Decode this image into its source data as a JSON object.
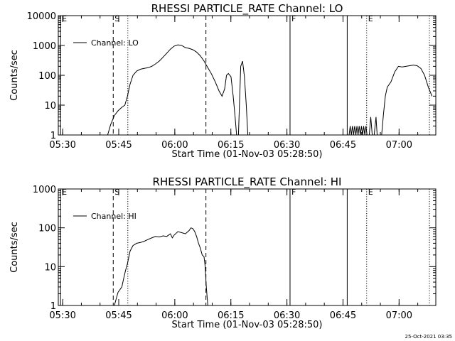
{
  "footer": {
    "timestamp": "25-Oct-2021 03:35"
  },
  "chart_data": [
    {
      "type": "line",
      "title": "RHESSI PARTICLE_RATE Channel: LO",
      "xlabel": "Start Time (01-Nov-03 05:28:50)",
      "ylabel": "Counts/sec",
      "x_units": "minutes after 05:28:50",
      "xlim": [
        0,
        101
      ],
      "ylim": [
        1,
        10000
      ],
      "yscale": "log",
      "x_tick_labels": [
        "05:30",
        "05:45",
        "06:00",
        "06:15",
        "06:30",
        "06:45",
        "07:00"
      ],
      "x_tick_values": [
        1.17,
        16.17,
        31.17,
        46.17,
        61.17,
        76.17,
        91.17
      ],
      "y_tick_labels": [
        "1",
        "10",
        "100",
        "1000",
        "10000"
      ],
      "y_tick_values": [
        1,
        10,
        100,
        1000,
        10000
      ],
      "legend": {
        "entry": "Channel: LO",
        "placement": "top-left"
      },
      "markers": [
        {
          "label": "E",
          "x": 0.6,
          "style": "solid"
        },
        {
          "label": "S",
          "x": 14.7,
          "style": "dashed"
        },
        {
          "label": "",
          "x": 18.6,
          "style": "dotted"
        },
        {
          "label": "",
          "x": 39.5,
          "style": "dashed"
        },
        {
          "label": "F",
          "x": 62.0,
          "style": "solid"
        },
        {
          "label": "",
          "x": 77.3,
          "style": "solid"
        },
        {
          "label": "E",
          "x": 82.5,
          "style": "dotted"
        },
        {
          "label": "",
          "x": 99.3,
          "style": "dotted"
        }
      ],
      "series": [
        {
          "name": "Channel: LO",
          "segments": [
            [
              [
                13.2,
                1
              ],
              [
                14.0,
                2.2
              ],
              [
                15.0,
                4.5
              ],
              [
                16.0,
                6.5
              ],
              [
                17.0,
                8.5
              ],
              [
                17.8,
                10
              ],
              [
                18.5,
                20
              ],
              [
                19.2,
                50
              ],
              [
                20.0,
                100
              ],
              [
                21.0,
                140
              ],
              [
                22.0,
                160
              ],
              [
                23.0,
                170
              ],
              [
                24.0,
                180
              ],
              [
                25.0,
                200
              ],
              [
                26.0,
                240
              ],
              [
                27.0,
                300
              ],
              [
                28.0,
                400
              ],
              [
                29.0,
                550
              ],
              [
                30.0,
                750
              ],
              [
                31.0,
                950
              ],
              [
                32.0,
                1050
              ],
              [
                33.0,
                1000
              ],
              [
                34.0,
                850
              ],
              [
                35.0,
                800
              ],
              [
                36.0,
                720
              ],
              [
                37.0,
                600
              ],
              [
                38.0,
                450
              ],
              [
                39.0,
                300
              ],
              [
                40.0,
                180
              ],
              [
                41.0,
                110
              ],
              [
                42.0,
                60
              ],
              [
                43.0,
                30
              ],
              [
                43.8,
                20
              ],
              [
                44.5,
                35
              ],
              [
                45.0,
                100
              ],
              [
                45.5,
                115
              ],
              [
                46.2,
                90
              ],
              [
                46.8,
                20
              ],
              [
                47.3,
                4
              ],
              [
                47.7,
                1
              ],
              [
                48.2,
                1
              ],
              [
                48.8,
                200
              ],
              [
                49.3,
                300
              ],
              [
                49.8,
                90
              ],
              [
                50.3,
                10
              ],
              [
                50.7,
                1
              ]
            ],
            [
              [
                77.8,
                1
              ],
              [
                78.1,
                2
              ],
              [
                78.4,
                1
              ],
              [
                78.7,
                2
              ],
              [
                79.0,
                1
              ],
              [
                79.3,
                2
              ],
              [
                79.6,
                1
              ],
              [
                79.9,
                2
              ],
              [
                80.2,
                1
              ],
              [
                80.5,
                2
              ],
              [
                80.8,
                1
              ],
              [
                81.1,
                2
              ],
              [
                81.4,
                1
              ],
              [
                81.7,
                2
              ],
              [
                82.0,
                1
              ],
              [
                82.3,
                2
              ],
              [
                82.6,
                1
              ],
              [
                83.2,
                1
              ],
              [
                83.6,
                4
              ],
              [
                84.0,
                1
              ],
              [
                84.5,
                1
              ],
              [
                85.0,
                4
              ],
              [
                85.3,
                1
              ],
              [
                86.5,
                1
              ],
              [
                87.0,
                5
              ],
              [
                87.5,
                20
              ],
              [
                88.0,
                40
              ],
              [
                89.0,
                60
              ],
              [
                90.0,
                130
              ],
              [
                91.0,
                200
              ],
              [
                92.0,
                190
              ],
              [
                93.0,
                200
              ],
              [
                94.0,
                210
              ],
              [
                95.0,
                220
              ],
              [
                96.0,
                210
              ],
              [
                97.0,
                170
              ],
              [
                98.0,
                100
              ],
              [
                99.0,
                40
              ],
              [
                100.0,
                20
              ]
            ]
          ]
        }
      ]
    },
    {
      "type": "line",
      "title": "RHESSI PARTICLE_RATE Channel: HI",
      "xlabel": "Start Time (01-Nov-03 05:28:50)",
      "ylabel": "Counts/sec",
      "x_units": "minutes after 05:28:50",
      "xlim": [
        0,
        101
      ],
      "ylim": [
        1,
        1000
      ],
      "yscale": "log",
      "x_tick_labels": [
        "05:30",
        "05:45",
        "06:00",
        "06:15",
        "06:30",
        "06:45",
        "07:00"
      ],
      "x_tick_values": [
        1.17,
        16.17,
        31.17,
        46.17,
        61.17,
        76.17,
        91.17
      ],
      "y_tick_labels": [
        "1",
        "10",
        "100",
        "1000"
      ],
      "y_tick_values": [
        1,
        10,
        100,
        1000
      ],
      "legend": {
        "entry": "Channel: HI",
        "placement": "top-left"
      },
      "markers": [
        {
          "label": "E",
          "x": 0.6,
          "style": "solid"
        },
        {
          "label": "S",
          "x": 14.7,
          "style": "dashed"
        },
        {
          "label": "",
          "x": 18.6,
          "style": "dotted"
        },
        {
          "label": "",
          "x": 39.5,
          "style": "dashed"
        },
        {
          "label": "F",
          "x": 62.0,
          "style": "solid"
        },
        {
          "label": "",
          "x": 77.3,
          "style": "solid"
        },
        {
          "label": "E",
          "x": 82.5,
          "style": "dotted"
        },
        {
          "label": "",
          "x": 99.3,
          "style": "dotted"
        }
      ],
      "series": [
        {
          "name": "Channel: HI",
          "segments": [
            [
              [
                15.0,
                1
              ],
              [
                15.5,
                1.5
              ],
              [
                16.0,
                2.2
              ],
              [
                17.0,
                3
              ],
              [
                17.5,
                5
              ],
              [
                18.0,
                8
              ],
              [
                18.5,
                12
              ],
              [
                19.2,
                25
              ],
              [
                20.0,
                35
              ],
              [
                21.0,
                40
              ],
              [
                22.0,
                42
              ],
              [
                23.0,
                45
              ],
              [
                24.0,
                50
              ],
              [
                25.0,
                55
              ],
              [
                26.0,
                60
              ],
              [
                27.0,
                58
              ],
              [
                28.0,
                62
              ],
              [
                29.0,
                60
              ],
              [
                30.0,
                70
              ],
              [
                30.5,
                55
              ],
              [
                31.0,
                65
              ],
              [
                32.0,
                80
              ],
              [
                33.0,
                75
              ],
              [
                34.0,
                70
              ],
              [
                35.0,
                85
              ],
              [
                35.5,
                100
              ],
              [
                36.0,
                95
              ],
              [
                36.5,
                80
              ],
              [
                37.0,
                60
              ],
              [
                37.5,
                40
              ],
              [
                38.0,
                30
              ],
              [
                38.5,
                20
              ],
              [
                39.0,
                18
              ],
              [
                39.3,
                10
              ],
              [
                39.6,
                3
              ],
              [
                40.0,
                1
              ]
            ]
          ]
        }
      ]
    }
  ]
}
